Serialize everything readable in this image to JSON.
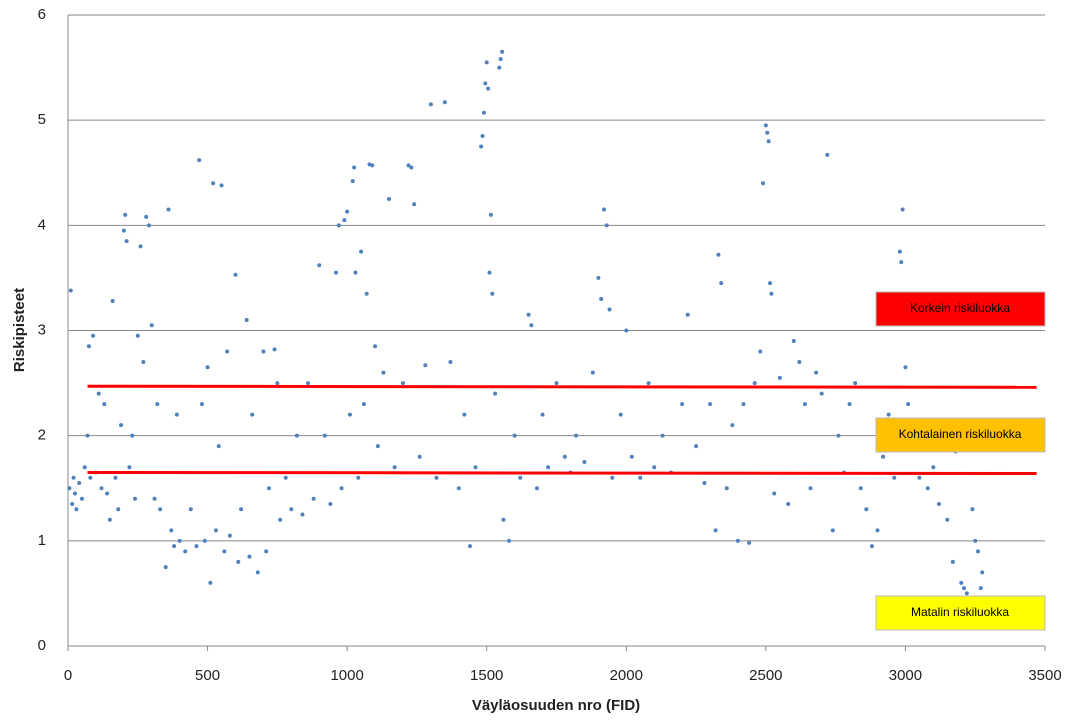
{
  "chart_data": {
    "type": "scatter",
    "xlabel": "Väyläosuuden nro (FID)",
    "ylabel": "Riskipisteet",
    "xlim": [
      0,
      3500
    ],
    "xticks": [
      0,
      500,
      1000,
      1500,
      2000,
      2500,
      3000,
      3500
    ],
    "ylim": [
      0,
      6
    ],
    "yticks": [
      0,
      1,
      2,
      3,
      4,
      5,
      6
    ],
    "grid": true,
    "color": "#4f81bd",
    "x": [
      5,
      10,
      15,
      20,
      25,
      30,
      40,
      50,
      60,
      70,
      75,
      80,
      90,
      100,
      110,
      120,
      130,
      140,
      150,
      160,
      170,
      180,
      190,
      200,
      205,
      210,
      220,
      230,
      240,
      250,
      260,
      270,
      280,
      290,
      300,
      310,
      320,
      330,
      350,
      360,
      370,
      380,
      390,
      400,
      420,
      440,
      460,
      470,
      480,
      490,
      500,
      510,
      520,
      530,
      540,
      550,
      560,
      570,
      580,
      600,
      610,
      620,
      640,
      650,
      660,
      680,
      700,
      710,
      720,
      740,
      750,
      760,
      780,
      800,
      820,
      840,
      860,
      880,
      900,
      920,
      940,
      960,
      970,
      980,
      990,
      1000,
      1010,
      1020,
      1025,
      1030,
      1040,
      1050,
      1060,
      1070,
      1080,
      1090,
      1100,
      1110,
      1130,
      1150,
      1170,
      1200,
      1220,
      1230,
      1240,
      1260,
      1280,
      1300,
      1320,
      1350,
      1370,
      1400,
      1420,
      1440,
      1460,
      1480,
      1485,
      1490,
      1495,
      1500,
      1505,
      1510,
      1515,
      1520,
      1530,
      1545,
      1550,
      1555,
      1560,
      1580,
      1600,
      1620,
      1650,
      1660,
      1680,
      1700,
      1720,
      1750,
      1780,
      1800,
      1820,
      1850,
      1880,
      1900,
      1910,
      1920,
      1930,
      1940,
      1950,
      1980,
      2000,
      2020,
      2050,
      2080,
      2100,
      2130,
      2160,
      2200,
      2220,
      2250,
      2280,
      2300,
      2320,
      2330,
      2340,
      2360,
      2380,
      2400,
      2420,
      2440,
      2460,
      2480,
      2490,
      2500,
      2505,
      2510,
      2515,
      2520,
      2530,
      2550,
      2580,
      2600,
      2620,
      2640,
      2660,
      2680,
      2700,
      2720,
      2740,
      2760,
      2780,
      2800,
      2820,
      2840,
      2860,
      2880,
      2900,
      2920,
      2940,
      2960,
      2980,
      2985,
      2990,
      3000,
      3010,
      3030,
      3050,
      3080,
      3100,
      3120,
      3150,
      3170,
      3180,
      3200,
      3210,
      3220,
      3240,
      3250,
      3260,
      3270,
      3275
    ],
    "values": [
      1.5,
      3.38,
      1.35,
      1.6,
      1.45,
      1.3,
      1.55,
      1.4,
      1.7,
      2.0,
      2.85,
      1.6,
      2.95,
      1.65,
      2.4,
      1.5,
      2.3,
      1.45,
      1.2,
      3.28,
      1.6,
      1.3,
      2.1,
      3.95,
      4.1,
      3.85,
      1.7,
      2.0,
      1.4,
      2.95,
      3.8,
      2.7,
      4.08,
      4.0,
      3.05,
      1.4,
      2.3,
      1.3,
      0.75,
      4.15,
      1.1,
      0.95,
      2.2,
      1.0,
      0.9,
      1.3,
      0.95,
      4.62,
      2.3,
      1.0,
      2.65,
      0.6,
      4.4,
      1.1,
      1.9,
      4.38,
      0.9,
      2.8,
      1.05,
      3.53,
      0.8,
      1.3,
      3.1,
      0.85,
      2.2,
      0.7,
      2.8,
      0.9,
      1.5,
      2.82,
      2.5,
      1.2,
      1.6,
      1.3,
      2.0,
      1.25,
      2.5,
      1.4,
      3.62,
      2.0,
      1.35,
      3.55,
      4.0,
      1.5,
      4.05,
      4.13,
      2.2,
      4.42,
      4.55,
      3.55,
      1.6,
      3.75,
      2.3,
      3.35,
      4.58,
      4.57,
      2.85,
      1.9,
      2.6,
      4.25,
      1.7,
      2.5,
      4.57,
      4.55,
      4.2,
      1.8,
      2.67,
      5.15,
      1.6,
      5.17,
      2.7,
      1.5,
      2.2,
      0.95,
      1.7,
      4.75,
      4.85,
      5.07,
      5.35,
      5.55,
      5.3,
      3.55,
      4.1,
      3.35,
      2.4,
      5.5,
      5.58,
      5.65,
      1.2,
      1.0,
      2.0,
      1.6,
      3.15,
      3.05,
      1.5,
      2.2,
      1.7,
      2.5,
      1.8,
      1.65,
      2.0,
      1.75,
      2.6,
      3.5,
      3.3,
      4.15,
      4.0,
      3.2,
      1.6,
      2.2,
      3.0,
      1.8,
      1.6,
      2.5,
      1.7,
      2.0,
      1.65,
      2.3,
      3.15,
      1.9,
      1.55,
      2.3,
      1.1,
      3.72,
      3.45,
      1.5,
      2.1,
      1.0,
      2.3,
      0.98,
      2.5,
      2.8,
      4.4,
      4.95,
      4.88,
      4.8,
      3.45,
      3.35,
      1.45,
      2.55,
      1.35,
      2.9,
      2.7,
      2.3,
      1.5,
      2.6,
      2.4,
      4.67,
      1.1,
      2.0,
      1.65,
      2.3,
      2.5,
      1.5,
      1.3,
      0.95,
      1.1,
      1.8,
      2.2,
      1.6,
      3.75,
      3.65,
      4.15,
      2.65,
      2.3,
      1.9,
      1.6,
      1.5,
      1.7,
      1.35,
      1.2,
      0.8,
      1.85,
      0.6,
      0.55,
      0.5,
      1.3,
      1.0,
      0.9,
      0.55,
      0.7
    ],
    "lines": [
      {
        "color": "#ff0000",
        "x": [
          70,
          3470
        ],
        "values": [
          2.47,
          2.46
        ]
      },
      {
        "color": "#ff0000",
        "x": [
          70,
          3470
        ],
        "values": [
          1.65,
          1.64
        ]
      }
    ],
    "annotations": [
      {
        "text": "Korkein riskiluokka",
        "color": "#ff0000"
      },
      {
        "text": "Kohtalainen riskiluokka",
        "color": "#ffc000"
      },
      {
        "text": "Matalin riskiluokka",
        "color": "#ffff00"
      }
    ]
  }
}
